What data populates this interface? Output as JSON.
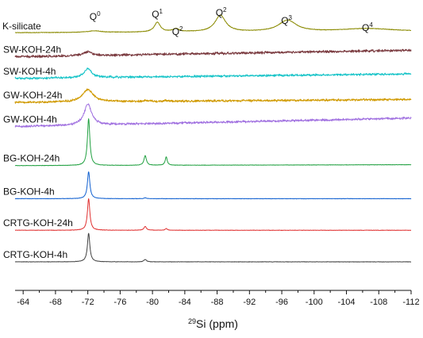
{
  "chart_data": {
    "type": "line",
    "xlabel_sup": "29",
    "xlabel": "Si (ppm)",
    "x_reversed": true,
    "xlim": [
      -63,
      -112
    ],
    "x_ticks": [
      -64,
      -68,
      -72,
      -76,
      -80,
      -84,
      -88,
      -92,
      -96,
      -100,
      -104,
      -108,
      -112
    ],
    "x_tick_labels": [
      "-64",
      "-68",
      "-72",
      "-76",
      "-80",
      "-84",
      "-88",
      "-92",
      "-96",
      "-100",
      "-104",
      "-108",
      "-112"
    ],
    "y_ticks_visible": false,
    "grid": false,
    "legend": "labels placed above each trace at left",
    "peak_annotations": [
      {
        "base": "Q",
        "sup": "0",
        "x": -72.8
      },
      {
        "base": "Q",
        "sup": "1",
        "x": -80.5
      },
      {
        "base": "Q",
        "sup": "2",
        "x": -83.0
      },
      {
        "base": "Q",
        "sup": "2",
        "x": -88.4
      },
      {
        "base": "Q",
        "sup": "3",
        "x": -96.5
      },
      {
        "base": "Q",
        "sup": "4",
        "x": -106.5
      }
    ],
    "series": [
      {
        "name": "K-silicate",
        "color": "#8a8a00",
        "offset": 7.6,
        "noise": 0.012,
        "baseline": [
          [
            -63,
            0.02
          ],
          [
            -112,
            0.06
          ]
        ],
        "peaks": [
          {
            "x": -72.8,
            "h": 0.05,
            "w": 1.0
          },
          {
            "x": -80.6,
            "h": 0.32,
            "w": 0.45
          },
          {
            "x": -82.9,
            "h": 0.1,
            "w": 0.5
          },
          {
            "x": -88.4,
            "h": 0.55,
            "w": 0.8
          },
          {
            "x": -96.7,
            "h": 0.38,
            "w": 1.3
          },
          {
            "x": -106.5,
            "h": 0.1,
            "w": 4.0
          }
        ]
      },
      {
        "name": "SW-KOH-24h",
        "color": "#7a3a3f",
        "offset": 6.82,
        "noise": 0.05,
        "baseline": [
          [
            -63,
            0.0
          ],
          [
            -112,
            0.22
          ]
        ],
        "peaks": [
          {
            "x": -72.0,
            "h": 0.12,
            "w": 0.6
          }
        ]
      },
      {
        "name": "SW-KOH-4h",
        "color": "#18c4c8",
        "offset": 6.1,
        "noise": 0.045,
        "baseline": [
          [
            -63,
            0.0
          ],
          [
            -112,
            0.15
          ]
        ],
        "peaks": [
          {
            "x": -72.0,
            "h": 0.3,
            "w": 0.55
          }
        ]
      },
      {
        "name": "GW-KOH-24h",
        "color": "#d09a00",
        "offset": 5.3,
        "noise": 0.045,
        "baseline": [
          [
            -63,
            0.0
          ],
          [
            -112,
            0.1
          ]
        ],
        "peaks": [
          {
            "x": -72.0,
            "h": 0.42,
            "w": 0.8
          },
          {
            "x": -79.1,
            "h": 0.04,
            "w": 0.3
          },
          {
            "x": -81.7,
            "h": 0.03,
            "w": 0.3
          }
        ]
      },
      {
        "name": "GW-KOH-4h",
        "color": "#a070e0",
        "offset": 4.5,
        "noise": 0.045,
        "baseline": [
          [
            -63,
            0.0
          ],
          [
            -112,
            0.28
          ]
        ],
        "peaks": [
          {
            "x": -72.0,
            "h": 0.7,
            "w": 0.55
          }
        ]
      },
      {
        "name": "BG-KOH-24h",
        "color": "#20a040",
        "offset": 3.2,
        "noise": 0.008,
        "baseline": [
          [
            -63,
            0.0
          ],
          [
            -112,
            0.03
          ]
        ],
        "peaks": [
          {
            "x": -72.1,
            "h": 1.55,
            "w": 0.18
          },
          {
            "x": -79.1,
            "h": 0.32,
            "w": 0.18
          },
          {
            "x": -81.7,
            "h": 0.28,
            "w": 0.15
          }
        ]
      },
      {
        "name": "BG-KOH-4h",
        "color": "#1060d0",
        "offset": 2.1,
        "noise": 0.008,
        "baseline": [
          [
            -63,
            0.0
          ],
          [
            -112,
            0.0
          ]
        ],
        "peaks": [
          {
            "x": -72.1,
            "h": 0.9,
            "w": 0.18
          },
          {
            "x": -79.1,
            "h": 0.03,
            "w": 0.18
          }
        ]
      },
      {
        "name": "CRTG-KOH-24h",
        "color": "#e03030",
        "offset": 1.05,
        "noise": 0.008,
        "baseline": [
          [
            -63,
            0.0
          ],
          [
            -112,
            0.0
          ]
        ],
        "peaks": [
          {
            "x": -72.1,
            "h": 1.05,
            "w": 0.18
          },
          {
            "x": -79.1,
            "h": 0.13,
            "w": 0.18
          },
          {
            "x": -81.7,
            "h": 0.06,
            "w": 0.15
          }
        ]
      },
      {
        "name": "CRTG-KOH-4h",
        "color": "#404040",
        "offset": 0.0,
        "noise": 0.008,
        "baseline": [
          [
            -63,
            0.0
          ],
          [
            -112,
            0.0
          ]
        ],
        "peaks": [
          {
            "x": -72.1,
            "h": 0.95,
            "w": 0.18
          },
          {
            "x": -79.1,
            "h": 0.08,
            "w": 0.18
          }
        ]
      }
    ]
  }
}
